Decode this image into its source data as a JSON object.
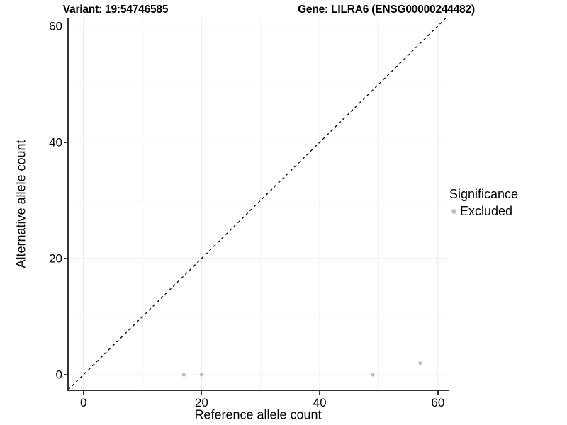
{
  "chart_data": {
    "type": "scatter",
    "title_left": "Variant: 19:54746585",
    "title_right": "Gene: LILRA6 (ENSG00000244482)",
    "xlabel": "Reference allele count",
    "ylabel": "Alternative allele count",
    "xlim": [
      -2.6,
      61.7
    ],
    "ylim": [
      -2.8,
      61.3
    ],
    "x_major_ticks": [
      0,
      20,
      40,
      60
    ],
    "y_major_ticks": [
      0,
      20,
      40,
      60
    ],
    "x_minor_ticks": [
      10,
      30,
      50
    ],
    "y_minor_ticks": [
      10,
      30,
      50
    ],
    "grid": true,
    "identity_line": {
      "style": "dashed",
      "color": "#000000"
    },
    "legend": {
      "title": "Significance",
      "position": "right",
      "entries": [
        {
          "label": "Excluded",
          "color": "#bebebe"
        }
      ]
    },
    "series": [
      {
        "name": "Excluded",
        "color": "#bebebe",
        "points": [
          [
            17,
            0
          ],
          [
            20,
            0
          ],
          [
            49,
            0
          ],
          [
            57,
            2
          ]
        ]
      }
    ],
    "colors": {
      "axis_line": "#333333",
      "grid_major": "#e9e9e9",
      "grid_minor": "#f3f3f3",
      "point": "#bebebe",
      "text": "#000000"
    }
  }
}
